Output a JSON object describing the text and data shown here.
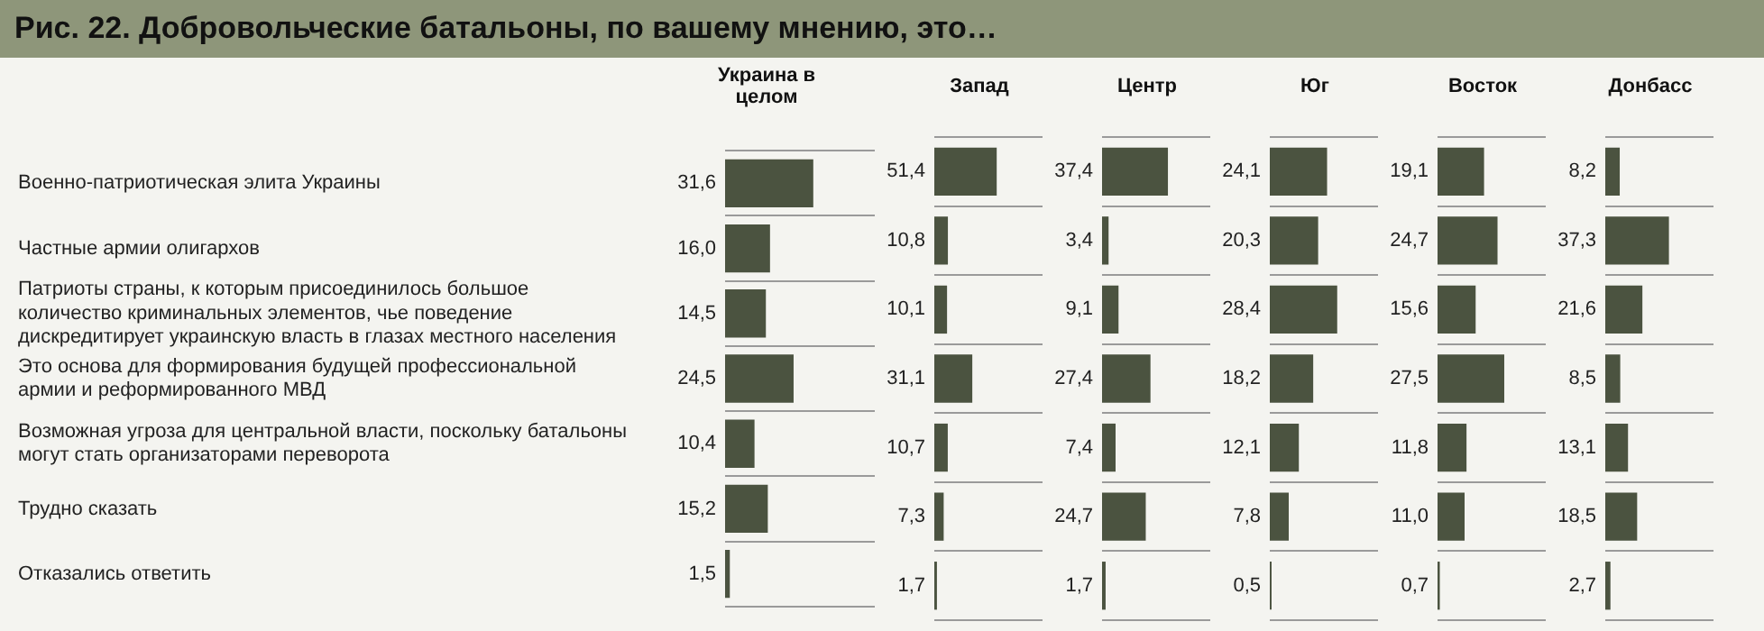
{
  "chart_data": [
    {
      "type": "other",
      "title": "Рис. 22. Добровольческие батальоны, по вашему мнению, это…"
    },
    {
      "type": "bar",
      "orientation": "horizontal",
      "title": "Украина в целом",
      "categories": [
        "Военно-патриотическая элита Украины",
        "Частные армии олигархов",
        "Патриоты страны, к которым присоединилось большое количество криминальных элементов, чье поведение дискредитирует украинскую власть в глазах местного населения",
        "Это основа для формирования будущей профессиональной армии и реформированного МВД",
        "Возможная угроза для центральной власти, поскольку батальоны могут стать организаторами переворота",
        "Трудно сказать",
        "Отказались ответить"
      ],
      "values": [
        31.6,
        16.0,
        14.5,
        24.5,
        10.4,
        15.2,
        1.5
      ],
      "value_labels": [
        "31,6",
        "16,0",
        "14,5",
        "24,5",
        "10,4",
        "15,2",
        "1,5"
      ],
      "color": "#4b5340",
      "xlim": [
        0,
        54
      ],
      "grid": "y",
      "tick_labels": "y"
    },
    {
      "type": "bar",
      "orientation": "horizontal",
      "title": "Запад",
      "categories": [
        null,
        null,
        null,
        null,
        null,
        null,
        null
      ],
      "values": [
        51.4,
        10.8,
        10.1,
        31.1,
        10.7,
        7.3,
        1.7
      ],
      "value_labels": [
        "51,4",
        "10,8",
        "10,1",
        "31,1",
        "10,7",
        "7,3",
        "1,7"
      ],
      "color": "#4b5340",
      "xlim": [
        0,
        90
      ],
      "grid": "y",
      "tick_labels": false
    },
    {
      "type": "bar",
      "orientation": "horizontal",
      "title": "Центр",
      "categories": [
        null,
        null,
        null,
        null,
        null,
        null,
        null
      ],
      "values": [
        37.4,
        3.4,
        9.1,
        27.4,
        7.4,
        24.7,
        1.7
      ],
      "value_labels": [
        "37,4",
        "3,4",
        "9,1",
        "27,4",
        "7,4",
        "24,7",
        "1,7"
      ],
      "color": "#4b5340",
      "xlim": [
        0,
        62
      ],
      "grid": "y",
      "tick_labels": false
    },
    {
      "type": "bar",
      "orientation": "horizontal",
      "title": "Юг",
      "categories": [
        null,
        null,
        null,
        null,
        null,
        null,
        null
      ],
      "values": [
        24.1,
        20.3,
        28.4,
        18.2,
        12.1,
        7.8,
        0.5
      ],
      "value_labels": [
        "24,1",
        "20,3",
        "28,4",
        "18,2",
        "12,1",
        "7,8",
        "0,5"
      ],
      "color": "#4b5340",
      "xlim": [
        0,
        46
      ],
      "grid": "y",
      "tick_labels": false
    },
    {
      "type": "bar",
      "orientation": "horizontal",
      "title": "Восток",
      "categories": [
        null,
        null,
        null,
        null,
        null,
        null,
        null
      ],
      "values": [
        19.1,
        24.7,
        15.6,
        27.5,
        11.8,
        11.0,
        0.7
      ],
      "value_labels": [
        "19,1",
        "24,7",
        "15,6",
        "27,5",
        "11,8",
        "11,0",
        "0,7"
      ],
      "color": "#4b5340",
      "xlim": [
        0,
        45
      ],
      "grid": "y",
      "tick_labels": false
    },
    {
      "type": "bar",
      "orientation": "horizontal",
      "title": "Донбасс",
      "categories": [
        null,
        null,
        null,
        null,
        null,
        null,
        null
      ],
      "values": [
        8.2,
        37.3,
        21.6,
        8.5,
        13.1,
        18.5,
        2.7
      ],
      "value_labels": [
        "8,2",
        "37,3",
        "21,6",
        "8,5",
        "13,1",
        "18,5",
        "2,7"
      ],
      "color": "#4b5340",
      "xlim": [
        0,
        64
      ],
      "grid": "y",
      "tick_labels": false
    }
  ]
}
